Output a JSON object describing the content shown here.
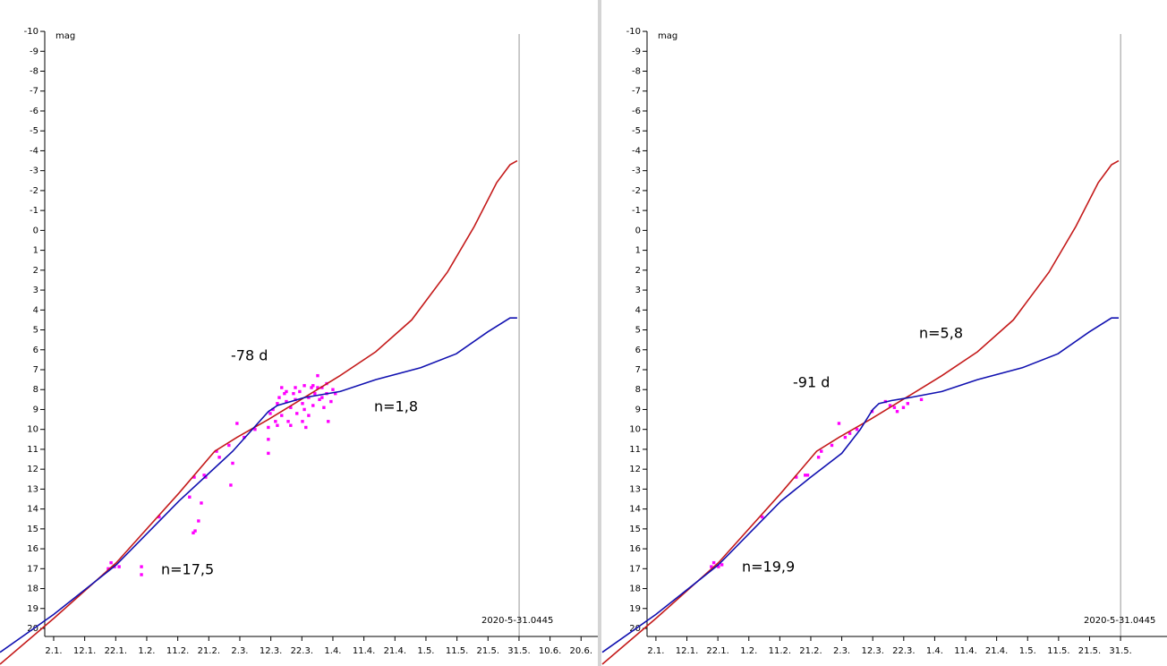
{
  "chart_data": [
    {
      "type": "line",
      "ylabel": "mag",
      "date_label": "2020-5-31.0445",
      "date_label_color": "#1a1a80",
      "marker_x": 152.04,
      "xlim": [
        -15.3,
        177.4
      ],
      "ylim": [
        20.4,
        -10.2
      ],
      "xticks": [
        {
          "value": 2,
          "label": "2.1."
        },
        {
          "value": 12,
          "label": "12.1."
        },
        {
          "value": 22,
          "label": "22.1."
        },
        {
          "value": 32,
          "label": "1.2."
        },
        {
          "value": 42,
          "label": "11.2."
        },
        {
          "value": 52,
          "label": "21.2."
        },
        {
          "value": 62,
          "label": "2.3."
        },
        {
          "value": 72,
          "label": "12.3."
        },
        {
          "value": 82,
          "label": "22.3."
        },
        {
          "value": 92,
          "label": "1.4."
        },
        {
          "value": 102,
          "label": "11.4."
        },
        {
          "value": 112,
          "label": "21.4."
        },
        {
          "value": 122,
          "label": "1.5."
        },
        {
          "value": 132,
          "label": "11.5."
        },
        {
          "value": 142,
          "label": "21.5."
        },
        {
          "value": 152,
          "label": "31.5."
        },
        {
          "value": 162,
          "label": "10.6."
        },
        {
          "value": 172,
          "label": "20.6."
        }
      ],
      "yticks": [
        -10,
        -9,
        -8,
        -7,
        -6,
        -5,
        -4,
        -3,
        -2,
        -1,
        0,
        1,
        2,
        3,
        4,
        5,
        6,
        7,
        8,
        9,
        10,
        11,
        12,
        13,
        14,
        15,
        16,
        17,
        18,
        19,
        20
      ],
      "series": [
        {
          "type": "scatter",
          "color": "#ff00ff",
          "x": [
            19.6,
            20.5,
            21.6,
            23.1,
            30.3,
            30.3,
            36.0,
            47.3,
            50.5,
            51.0,
            45.8,
            47.6,
            47.0,
            48.7,
            49.6,
            54.5,
            55.4,
            58.5,
            59.1,
            59.7,
            61.1,
            63.4,
            66.9,
            71.2,
            71.2,
            71.2,
            71.8,
            72.7,
            73.5,
            74.1,
            74.7,
            75.5,
            76.4,
            77.0,
            77.6,
            78.4,
            79.3,
            79.9,
            80.4,
            81.3,
            82.2,
            82.8,
            83.3,
            84.2,
            85.1,
            85.6,
            86.2,
            87.1,
            87.7,
            88.5,
            89.1,
            90.0,
            90.5,
            91.4,
            92.0,
            92.8,
            84.2,
            82.2,
            78.4,
            74.1,
            75.5,
            79.9,
            82.8,
            87.1,
            90.0,
            77.0,
            88.5,
            85.6
          ],
          "values": [
            17.0,
            16.7,
            16.9,
            16.9,
            16.9,
            17.3,
            14.4,
            12.4,
            12.3,
            12.4,
            13.4,
            15.1,
            15.2,
            14.6,
            13.7,
            11.1,
            11.4,
            10.8,
            12.8,
            11.7,
            9.7,
            10.4,
            10.0,
            10.5,
            11.2,
            9.9,
            9.2,
            9.0,
            9.6,
            8.7,
            8.4,
            9.3,
            8.2,
            8.6,
            9.6,
            8.9,
            8.2,
            8.5,
            9.2,
            8.1,
            8.7,
            9.0,
            9.9,
            8.4,
            7.9,
            8.8,
            8.2,
            7.3,
            8.5,
            7.9,
            8.9,
            8.2,
            9.6,
            8.6,
            8.0,
            8.2,
            9.3,
            9.6,
            9.8,
            9.8,
            7.9,
            7.9,
            7.8,
            7.9,
            7.7,
            8.1,
            8.4,
            7.8
          ]
        },
        {
          "type": "line",
          "color": "#c41a1a",
          "x": [
            -15.3,
            2,
            22.2,
            42.4,
            53.9,
            61.1,
            71.2,
            82.8,
            94.3,
            105.8,
            117.4,
            128.9,
            137.6,
            144.8,
            149.1,
            151.4
          ],
          "values": [
            21.8,
            19.5,
            16.7,
            13.2,
            11.1,
            10.4,
            9.5,
            8.4,
            7.3,
            6.1,
            4.5,
            2.1,
            -0.2,
            -2.4,
            -3.3,
            -3.5
          ]
        },
        {
          "type": "line",
          "color": "#1010b0",
          "x": [
            -15.3,
            2,
            22.2,
            42.4,
            59.7,
            71.2,
            74.1,
            82.8,
            94.3,
            105.8,
            120.3,
            131.8,
            141.9,
            149.1,
            151.4
          ],
          "values": [
            21.2,
            19.3,
            16.8,
            13.6,
            11.1,
            9.1,
            8.8,
            8.4,
            8.1,
            7.5,
            6.9,
            6.2,
            5.1,
            4.4,
            4.4
          ]
        }
      ],
      "annotations": [
        {
          "text": "-78 d",
          "color": "#2020b0"
        },
        {
          "text": "n=1,8",
          "color": "#2020b0"
        },
        {
          "text": "n=17,5",
          "color": "#2020b0"
        }
      ]
    },
    {
      "type": "line",
      "ylabel": "mag",
      "date_label": "2020-5-31.0445",
      "date_label_color": "#1a1a80",
      "marker_x": 152.04,
      "xlim": [
        -15.6,
        167
      ],
      "ylim": [
        20.4,
        -10.2
      ],
      "xticks": [
        {
          "value": 2,
          "label": "2.1."
        },
        {
          "value": 12,
          "label": "12.1."
        },
        {
          "value": 22,
          "label": "22.1."
        },
        {
          "value": 32,
          "label": "1.2."
        },
        {
          "value": 42,
          "label": "11.2."
        },
        {
          "value": 52,
          "label": "21.2."
        },
        {
          "value": 62,
          "label": "2.3."
        },
        {
          "value": 72,
          "label": "12.3."
        },
        {
          "value": 82,
          "label": "22.3."
        },
        {
          "value": 92,
          "label": "1.4."
        },
        {
          "value": 102,
          "label": "11.4."
        },
        {
          "value": 112,
          "label": "21.4."
        },
        {
          "value": 122,
          "label": "1.5."
        },
        {
          "value": 132,
          "label": "11.5."
        },
        {
          "value": 142,
          "label": "21.5."
        },
        {
          "value": 152,
          "label": "31.5."
        }
      ],
      "yticks": [
        -10,
        -9,
        -8,
        -7,
        -6,
        -5,
        -4,
        -3,
        -2,
        -1,
        0,
        1,
        2,
        3,
        4,
        5,
        6,
        7,
        8,
        9,
        10,
        11,
        12,
        13,
        14,
        15,
        16,
        17,
        18,
        19,
        20
      ],
      "series": [
        {
          "type": "scatter",
          "color": "#ff00ff",
          "x": [
            19.9,
            20.7,
            22.2,
            23.3,
            36.3,
            47.3,
            50.2,
            51.0,
            54.5,
            55.4,
            58.8,
            61.1,
            63.1,
            64.6,
            66.9,
            71.8,
            76.1,
            77.6,
            79.0,
            79.9,
            81.9,
            83.3,
            87.7
          ],
          "values": [
            16.9,
            16.7,
            16.9,
            16.8,
            14.4,
            12.4,
            12.3,
            12.3,
            11.4,
            11.1,
            10.8,
            9.7,
            10.4,
            10.2,
            10.0,
            9.1,
            8.6,
            8.8,
            8.9,
            9.1,
            8.9,
            8.7,
            8.5
          ]
        },
        {
          "type": "line",
          "color": "#c41a1a",
          "x": [
            -15.3,
            2,
            22.2,
            42.4,
            53.9,
            61.1,
            71.2,
            82.8,
            94.3,
            105.8,
            117.4,
            128.9,
            137.6,
            144.8,
            149.1,
            151.4
          ],
          "values": [
            21.8,
            19.5,
            16.7,
            13.2,
            11.1,
            10.4,
            9.5,
            8.4,
            7.3,
            6.1,
            4.5,
            2.1,
            -0.2,
            -2.4,
            -3.3,
            -3.5
          ]
        },
        {
          "type": "line",
          "color": "#1010b0",
          "x": [
            -15.3,
            2,
            22.2,
            42.4,
            52,
            62,
            68,
            72,
            74,
            78,
            84,
            94.3,
            105.8,
            120.3,
            131.8,
            141.9,
            149.1,
            151.4
          ],
          "values": [
            21.2,
            19.3,
            16.8,
            13.6,
            12.4,
            11.2,
            10.0,
            9.0,
            8.7,
            8.55,
            8.4,
            8.1,
            7.5,
            6.9,
            6.2,
            5.1,
            4.4,
            4.4
          ]
        }
      ],
      "annotations": [
        {
          "text": "-91 d",
          "color": "#d8307c"
        },
        {
          "text": "n=5,8",
          "color": "#d8307c"
        },
        {
          "text": "n=19,9",
          "color": "#d8307c"
        }
      ]
    }
  ]
}
